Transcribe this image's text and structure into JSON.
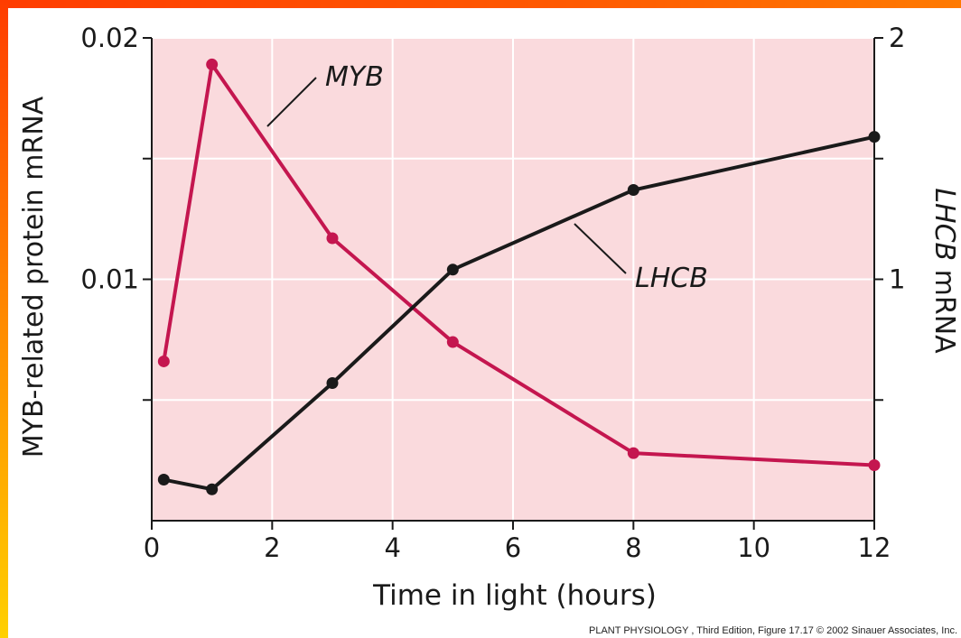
{
  "chart_data": {
    "type": "line",
    "xlabel": "Time in light (hours)",
    "ylabel_left": "MYB-related protein mRNA",
    "ylabel_right_italic": "LHCB",
    "ylabel_right_rest": " mRNA",
    "xlim": [
      0,
      12
    ],
    "ylim_left": [
      0,
      0.02
    ],
    "ylim_right": [
      0,
      2
    ],
    "x_ticks": [
      0,
      2,
      4,
      6,
      8,
      10,
      12
    ],
    "x_tick_labels": [
      "0",
      "2",
      "4",
      "6",
      "8",
      "10",
      "12"
    ],
    "y_left_ticks": [
      0.005,
      0.01,
      0.015,
      0.02
    ],
    "y_left_tick_labels": [
      "",
      "0.01",
      "",
      "0.02"
    ],
    "y_right_ticks": [
      0.5,
      1,
      1.5,
      2
    ],
    "y_right_tick_labels": [
      "",
      "1",
      "",
      "2"
    ],
    "grid": true,
    "colors": {
      "plot_bg": "#fadadd",
      "grid": "#ffffff",
      "myb": "#c4164f",
      "lhcb": "#1a1a1a"
    },
    "series": [
      {
        "name": "MYB",
        "axis": "left",
        "x": [
          0.2,
          1,
          3,
          5,
          8,
          12
        ],
        "y": [
          0.0066,
          0.0189,
          0.0117,
          0.0074,
          0.0028,
          0.0023
        ]
      },
      {
        "name": "LHCB",
        "axis": "right",
        "x": [
          0.2,
          1,
          3,
          5,
          8,
          12
        ],
        "y": [
          0.17,
          0.13,
          0.57,
          1.04,
          1.37,
          1.59
        ]
      }
    ]
  },
  "credit": "PLANT PHYSIOLOGY , Third Edition, Figure 17.17  © 2002 Sinauer Associates, Inc."
}
